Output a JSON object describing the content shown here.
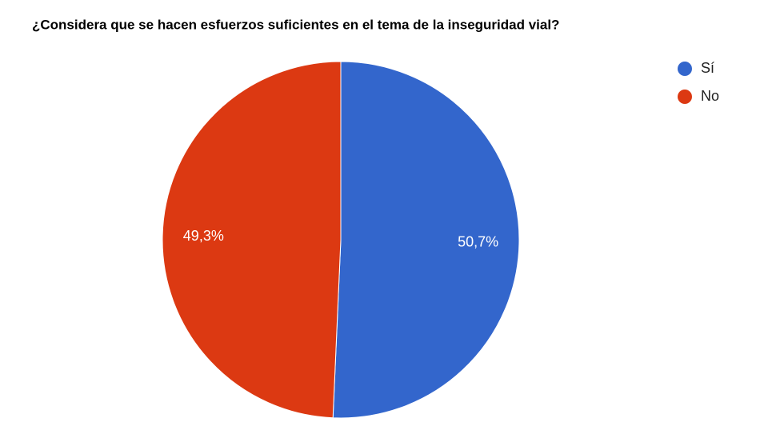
{
  "chart_data": {
    "type": "pie",
    "title": "¿Considera que se hacen esfuerzos suficientes en el tema de la inseguridad vial?",
    "categories": [
      "Sí",
      "No"
    ],
    "values": [
      50.7,
      49.3
    ],
    "value_labels": [
      "50,7%",
      "49,3%"
    ],
    "colors": [
      "#3366cc",
      "#dc3912"
    ],
    "legend": "right"
  }
}
